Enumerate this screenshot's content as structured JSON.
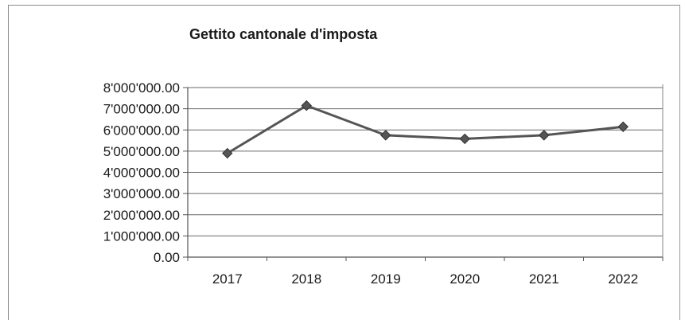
{
  "chart_data": {
    "type": "line",
    "title": "Gettito cantonale d'imposta",
    "xlabel": "",
    "ylabel": "",
    "categories": [
      "2017",
      "2018",
      "2019",
      "2020",
      "2021",
      "2022"
    ],
    "series": [
      {
        "values": [
          4900000,
          7150000,
          5750000,
          5580000,
          5750000,
          6150000
        ]
      }
    ],
    "ylim": [
      0,
      8000000
    ],
    "ytick_labels": [
      "0.00",
      "1'000'000.00",
      "2'000'000.00",
      "3'000'000.00",
      "4'000'000.00",
      "5'000'000.00",
      "6'000'000.00",
      "7'000'000.00",
      "8'000'000.00"
    ],
    "grid": true,
    "legend": "none",
    "marker": "diamond",
    "line_color": "#555555",
    "marker_color": "#555555"
  }
}
